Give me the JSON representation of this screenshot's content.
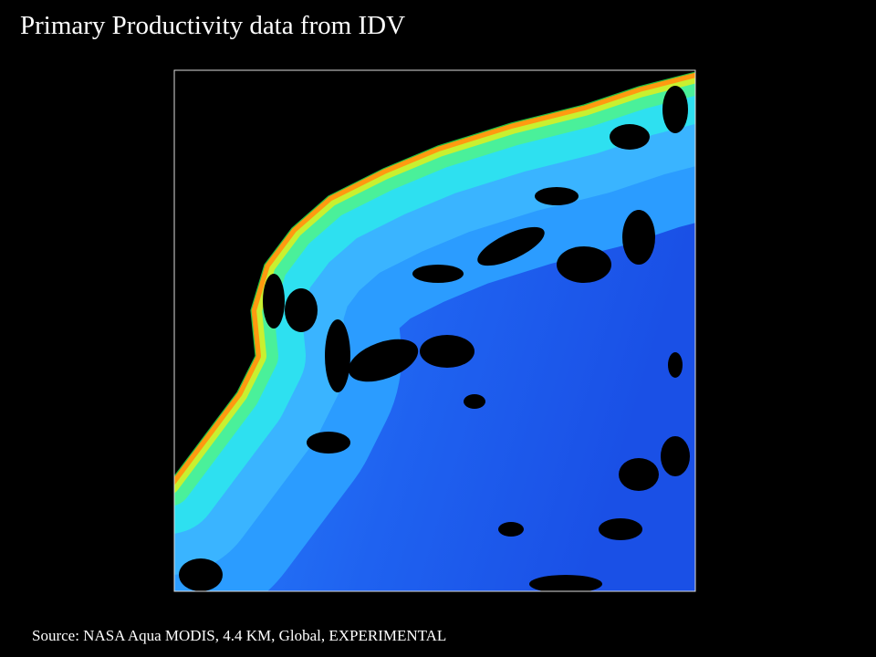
{
  "header": {
    "title": "Primary Productivity data from IDV"
  },
  "footer": {
    "source": "Source: NASA Aqua MODIS, 4.4 KM, Global, EXPERIMENTAL"
  }
}
